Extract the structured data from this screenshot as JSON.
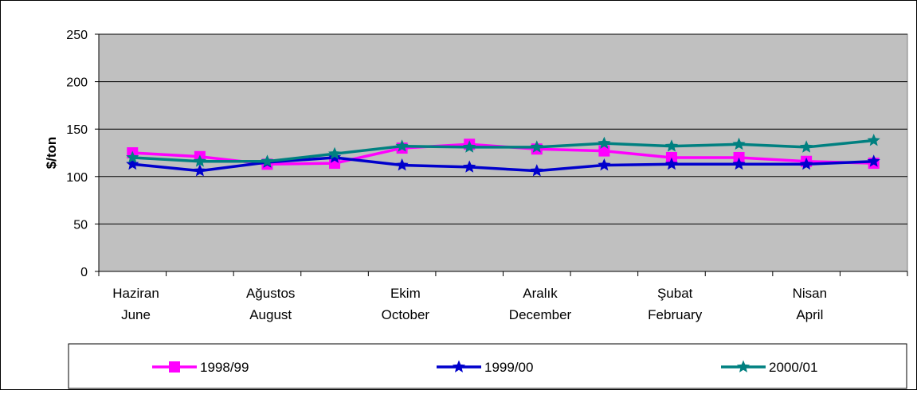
{
  "chart_data": {
    "type": "line",
    "title": "",
    "xlabel": "",
    "ylabel": "$/ton",
    "ylim": [
      0,
      250
    ],
    "yticks": [
      0,
      50,
      100,
      150,
      200,
      250
    ],
    "grid": true,
    "legend_position": "bottom",
    "categories": [
      [
        "Haziran",
        "June"
      ],
      [
        "",
        ""
      ],
      [
        "Ağustos",
        "August"
      ],
      [
        "",
        ""
      ],
      [
        "Ekim",
        "October"
      ],
      [
        "",
        ""
      ],
      [
        "Aralık",
        "December"
      ],
      [
        "",
        ""
      ],
      [
        "Şubat",
        "February"
      ],
      [
        "",
        ""
      ],
      [
        "Nisan",
        "April"
      ],
      [
        "",
        ""
      ]
    ],
    "series": [
      {
        "name": "1998/99",
        "color": "#ff00ff",
        "marker": "square",
        "values": [
          125,
          121,
          113,
          114,
          130,
          134,
          129,
          127,
          120,
          120,
          116,
          114
        ]
      },
      {
        "name": "1999/00",
        "color": "#0000cc",
        "marker": "star",
        "values": [
          113,
          106,
          115,
          120,
          112,
          110,
          106,
          112,
          113,
          113,
          113,
          116
        ]
      },
      {
        "name": "2000/01",
        "color": "#008080",
        "marker": "star",
        "values": [
          120,
          116,
          116,
          124,
          132,
          131,
          131,
          135,
          132,
          134,
          131,
          138
        ]
      }
    ],
    "colors": {
      "plot_background": "#c0c0c0",
      "gridline": "#000000",
      "axis": "#000000"
    }
  }
}
